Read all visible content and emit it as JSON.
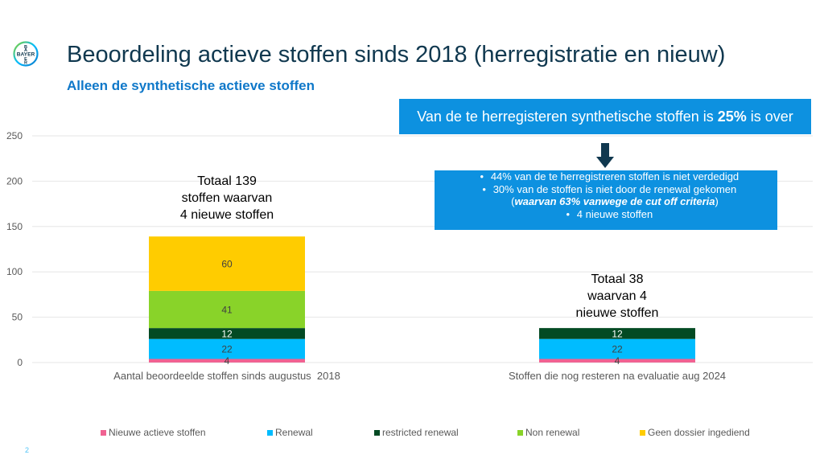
{
  "header": {
    "logo_text": "BAYER",
    "title": "Beoordeling actieve stoffen sinds 2018 (herregistratie en nieuw)",
    "subtitle": "Alleen de synthetische actieve stoffen"
  },
  "callouts": {
    "top": {
      "prefix": "Van de te herregisteren synthetische stoffen is ",
      "bold": "25%",
      "suffix": " is over"
    },
    "arrow_icon": "arrow-down-icon",
    "bottom": {
      "bullet": "•",
      "line1": "44% van de te herregistreren stoffen is niet verdedigd",
      "line2": "30% van de stoffen is niet door de renewal gekomen",
      "line3_open": "(",
      "line3_bold_italic": "waarvan 63% vanwege de cut off criteria",
      "line3_close": ")",
      "line4": "4 nieuwe stoffen"
    }
  },
  "annotations": {
    "bar1": [
      "Totaal 139",
      "stoffen waarvan",
      "4 nieuwe stoffen"
    ],
    "bar2": [
      "Totaal 38",
      "waarvan 4",
      "nieuwe stoffen"
    ]
  },
  "page_number": "2",
  "chart_data": {
    "type": "bar",
    "stacked": true,
    "title": "",
    "xlabel": "",
    "ylabel": "",
    "ylim": [
      0,
      250
    ],
    "yticks": [
      0,
      50,
      100,
      150,
      200,
      250
    ],
    "grid": true,
    "legend_position": "bottom",
    "categories": [
      "Aantal beoordeelde stoffen sinds augustus  2018",
      "Stoffen die nog resteren na evaluatie aug 2024"
    ],
    "series": [
      {
        "name": "Nieuwe actieve stoffen",
        "color": "#f06292",
        "label_color": "#404040",
        "values": [
          4,
          4
        ]
      },
      {
        "name": "Renewal",
        "color": "#00bcff",
        "label_color": "#404040",
        "values": [
          22,
          22
        ]
      },
      {
        "name": "restricted renewal",
        "color": "#034a23",
        "label_color": "#ffffff",
        "values": [
          12,
          12
        ]
      },
      {
        "name": "Non renewal",
        "color": "#89d329",
        "label_color": "#404040",
        "values": [
          41,
          0
        ]
      },
      {
        "name": "Geen dossier ingediend",
        "color": "#ffcc00",
        "label_color": "#404040",
        "values": [
          60,
          0
        ]
      }
    ]
  }
}
